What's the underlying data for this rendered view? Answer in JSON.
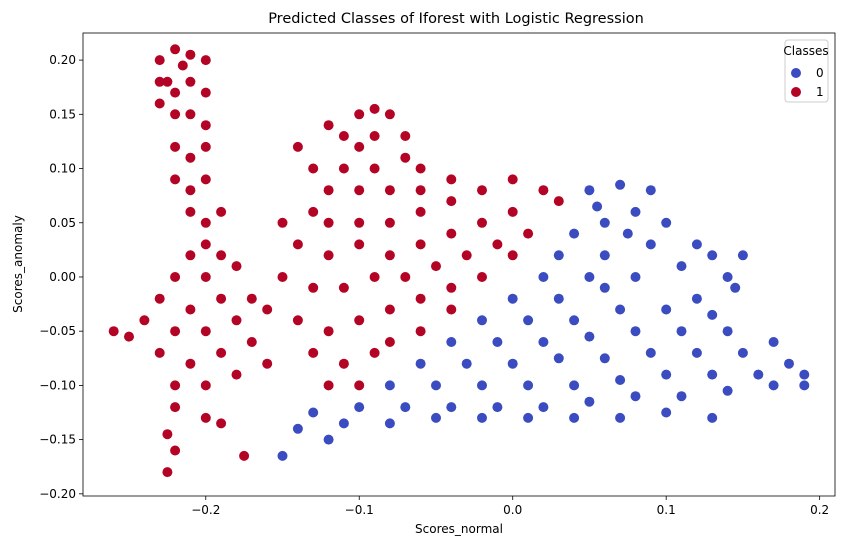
{
  "chart_data": {
    "type": "scatter",
    "title": "Predicted Classes of Iforest with Logistic Regression",
    "xlabel": "Scores_normal",
    "ylabel": "Scores_anomaly",
    "xlim": [
      -0.28,
      0.21
    ],
    "ylim": [
      -0.202,
      0.225
    ],
    "xticks": [
      -0.2,
      -0.1,
      0.0,
      0.1,
      0.2
    ],
    "xtick_labels": [
      "−0.2",
      "−0.1",
      "0.0",
      "0.1",
      "0.2"
    ],
    "yticks": [
      -0.2,
      -0.15,
      -0.1,
      -0.05,
      0.0,
      0.05,
      0.1,
      0.15,
      0.2
    ],
    "ytick_labels": [
      "−0.20",
      "−0.15",
      "−0.10",
      "−0.05",
      "0.00",
      "0.05",
      "0.10",
      "0.15",
      "0.20"
    ],
    "grid": false,
    "legend": {
      "title": "Classes",
      "position": "upper right",
      "entries": [
        {
          "label": "0",
          "color": "#3b4cc0"
        },
        {
          "label": "1",
          "color": "#b40426"
        }
      ]
    },
    "series": [
      {
        "name": "0",
        "color": "#3b4cc0",
        "points": [
          [
            0.05,
            0.08
          ],
          [
            0.07,
            0.085
          ],
          [
            0.09,
            0.08
          ],
          [
            0.06,
            0.05
          ],
          [
            0.08,
            0.06
          ],
          [
            0.04,
            0.04
          ],
          [
            0.1,
            0.05
          ],
          [
            0.03,
            0.02
          ],
          [
            0.06,
            0.02
          ],
          [
            0.09,
            0.03
          ],
          [
            0.12,
            0.03
          ],
          [
            0.02,
            0.0
          ],
          [
            0.05,
            0.0
          ],
          [
            0.08,
            0.0
          ],
          [
            0.11,
            0.01
          ],
          [
            0.13,
            0.02
          ],
          [
            0.14,
            0.0
          ],
          [
            0.0,
            -0.02
          ],
          [
            0.03,
            -0.02
          ],
          [
            0.06,
            -0.01
          ],
          [
            0.12,
            -0.02
          ],
          [
            0.145,
            -0.01
          ],
          [
            -0.02,
            -0.04
          ],
          [
            0.01,
            -0.04
          ],
          [
            0.04,
            -0.04
          ],
          [
            0.07,
            -0.03
          ],
          [
            0.1,
            -0.03
          ],
          [
            0.13,
            -0.035
          ],
          [
            -0.04,
            -0.06
          ],
          [
            -0.01,
            -0.06
          ],
          [
            0.02,
            -0.06
          ],
          [
            0.05,
            -0.055
          ],
          [
            0.08,
            -0.05
          ],
          [
            0.11,
            -0.05
          ],
          [
            0.14,
            -0.05
          ],
          [
            0.17,
            -0.06
          ],
          [
            -0.06,
            -0.08
          ],
          [
            -0.03,
            -0.08
          ],
          [
            0.0,
            -0.08
          ],
          [
            0.03,
            -0.075
          ],
          [
            0.06,
            -0.075
          ],
          [
            0.09,
            -0.07
          ],
          [
            0.12,
            -0.07
          ],
          [
            0.15,
            -0.07
          ],
          [
            0.18,
            -0.08
          ],
          [
            0.19,
            -0.09
          ],
          [
            -0.08,
            -0.1
          ],
          [
            -0.05,
            -0.1
          ],
          [
            -0.02,
            -0.1
          ],
          [
            0.01,
            -0.1
          ],
          [
            0.04,
            -0.1
          ],
          [
            0.07,
            -0.095
          ],
          [
            0.1,
            -0.09
          ],
          [
            0.13,
            -0.09
          ],
          [
            0.16,
            -0.09
          ],
          [
            0.19,
            -0.1
          ],
          [
            -0.1,
            -0.12
          ],
          [
            -0.07,
            -0.12
          ],
          [
            -0.04,
            -0.12
          ],
          [
            -0.01,
            -0.12
          ],
          [
            0.02,
            -0.12
          ],
          [
            0.05,
            -0.115
          ],
          [
            0.08,
            -0.11
          ],
          [
            0.11,
            -0.11
          ],
          [
            0.14,
            -0.105
          ],
          [
            0.17,
            -0.1
          ],
          [
            -0.11,
            -0.135
          ],
          [
            -0.08,
            -0.135
          ],
          [
            -0.05,
            -0.13
          ],
          [
            -0.02,
            -0.13
          ],
          [
            0.01,
            -0.13
          ],
          [
            0.04,
            -0.13
          ],
          [
            0.07,
            -0.13
          ],
          [
            0.1,
            -0.125
          ],
          [
            0.13,
            -0.13
          ],
          [
            -0.12,
            -0.15
          ],
          [
            -0.15,
            -0.165
          ],
          [
            -0.14,
            -0.14
          ],
          [
            -0.13,
            -0.125
          ],
          [
            0.15,
            0.02
          ],
          [
            0.055,
            0.065
          ],
          [
            0.075,
            0.04
          ]
        ]
      },
      {
        "name": "1",
        "color": "#b40426",
        "points": [
          [
            -0.23,
            0.2
          ],
          [
            -0.22,
            0.21
          ],
          [
            -0.21,
            0.205
          ],
          [
            -0.2,
            0.2
          ],
          [
            -0.23,
            0.18
          ],
          [
            -0.22,
            0.17
          ],
          [
            -0.21,
            0.18
          ],
          [
            -0.2,
            0.17
          ],
          [
            -0.23,
            0.16
          ],
          [
            -0.22,
            0.15
          ],
          [
            -0.21,
            0.15
          ],
          [
            -0.2,
            0.14
          ],
          [
            -0.22,
            0.12
          ],
          [
            -0.21,
            0.11
          ],
          [
            -0.2,
            0.12
          ],
          [
            -0.22,
            0.09
          ],
          [
            -0.21,
            0.08
          ],
          [
            -0.2,
            0.09
          ],
          [
            -0.21,
            0.06
          ],
          [
            -0.2,
            0.05
          ],
          [
            -0.19,
            0.06
          ],
          [
            -0.2,
            0.03
          ],
          [
            -0.21,
            0.02
          ],
          [
            -0.19,
            0.02
          ],
          [
            -0.22,
            0.0
          ],
          [
            -0.2,
            0.0
          ],
          [
            -0.18,
            0.01
          ],
          [
            -0.23,
            -0.02
          ],
          [
            -0.21,
            -0.03
          ],
          [
            -0.19,
            -0.02
          ],
          [
            -0.17,
            -0.02
          ],
          [
            -0.24,
            -0.04
          ],
          [
            -0.22,
            -0.05
          ],
          [
            -0.2,
            -0.05
          ],
          [
            -0.18,
            -0.04
          ],
          [
            -0.16,
            -0.03
          ],
          [
            -0.26,
            -0.05
          ],
          [
            -0.25,
            -0.055
          ],
          [
            -0.23,
            -0.07
          ],
          [
            -0.21,
            -0.08
          ],
          [
            -0.19,
            -0.07
          ],
          [
            -0.17,
            -0.06
          ],
          [
            -0.22,
            -0.1
          ],
          [
            -0.2,
            -0.1
          ],
          [
            -0.18,
            -0.09
          ],
          [
            -0.16,
            -0.08
          ],
          [
            -0.22,
            -0.12
          ],
          [
            -0.2,
            -0.13
          ],
          [
            -0.19,
            -0.135
          ],
          [
            -0.225,
            -0.145
          ],
          [
            -0.22,
            -0.16
          ],
          [
            -0.225,
            -0.18
          ],
          [
            -0.175,
            -0.165
          ],
          [
            -0.15,
            0.05
          ],
          [
            -0.13,
            0.06
          ],
          [
            -0.12,
            0.05
          ],
          [
            -0.14,
            0.03
          ],
          [
            -0.12,
            0.02
          ],
          [
            -0.15,
            0.0
          ],
          [
            -0.13,
            -0.01
          ],
          [
            -0.11,
            -0.01
          ],
          [
            -0.14,
            -0.04
          ],
          [
            -0.12,
            -0.05
          ],
          [
            -0.1,
            -0.04
          ],
          [
            -0.13,
            -0.07
          ],
          [
            -0.11,
            -0.08
          ],
          [
            -0.09,
            -0.07
          ],
          [
            -0.12,
            -0.1
          ],
          [
            -0.1,
            -0.1
          ],
          [
            -0.1,
            0.15
          ],
          [
            -0.09,
            0.155
          ],
          [
            -0.08,
            0.15
          ],
          [
            -0.11,
            0.13
          ],
          [
            -0.1,
            0.12
          ],
          [
            -0.09,
            0.13
          ],
          [
            -0.07,
            0.13
          ],
          [
            -0.11,
            0.1
          ],
          [
            -0.09,
            0.1
          ],
          [
            -0.07,
            0.11
          ],
          [
            -0.06,
            0.1
          ],
          [
            -0.1,
            0.08
          ],
          [
            -0.08,
            0.08
          ],
          [
            -0.06,
            0.08
          ],
          [
            -0.04,
            0.09
          ],
          [
            -0.1,
            0.05
          ],
          [
            -0.08,
            0.05
          ],
          [
            -0.06,
            0.06
          ],
          [
            -0.04,
            0.07
          ],
          [
            -0.02,
            0.08
          ],
          [
            0.0,
            0.09
          ],
          [
            -0.1,
            0.03
          ],
          [
            -0.08,
            0.02
          ],
          [
            -0.06,
            0.03
          ],
          [
            -0.04,
            0.04
          ],
          [
            -0.02,
            0.05
          ],
          [
            0.0,
            0.06
          ],
          [
            0.02,
            0.08
          ],
          [
            -0.09,
            0.0
          ],
          [
            -0.07,
            0.0
          ],
          [
            -0.05,
            0.01
          ],
          [
            -0.03,
            0.02
          ],
          [
            -0.01,
            0.03
          ],
          [
            0.01,
            0.04
          ],
          [
            0.03,
            0.07
          ],
          [
            -0.08,
            -0.03
          ],
          [
            -0.06,
            -0.02
          ],
          [
            -0.04,
            -0.01
          ],
          [
            -0.02,
            0.0
          ],
          [
            0.0,
            0.02
          ],
          [
            -0.08,
            -0.06
          ],
          [
            -0.06,
            -0.05
          ],
          [
            -0.04,
            -0.03
          ],
          [
            -0.13,
            0.1
          ],
          [
            -0.12,
            0.08
          ],
          [
            -0.14,
            0.12
          ],
          [
            -0.12,
            0.14
          ],
          [
            -0.225,
            0.18
          ],
          [
            -0.215,
            0.195
          ]
        ]
      }
    ]
  }
}
